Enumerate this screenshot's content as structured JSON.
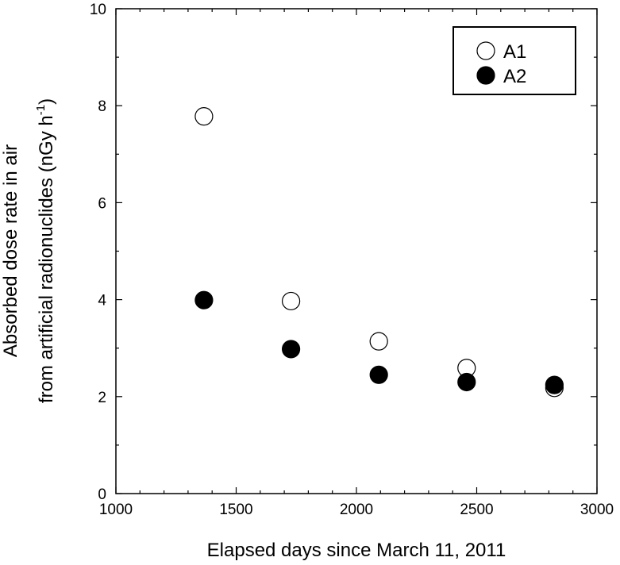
{
  "chart_data": {
    "type": "scatter",
    "xlabel": "Elapsed days since March 11, 2011",
    "ylabel_line1": "Absorbed dose rate in air",
    "ylabel_line2_main": "from artificial radionuclides (nGy h",
    "ylabel_line2_sup": "-1",
    "ylabel_line2_end": ")",
    "xlim": [
      1000,
      3000
    ],
    "ylim": [
      0,
      10
    ],
    "x_major_ticks": [
      1000,
      1500,
      2000,
      2500,
      3000
    ],
    "x_minor_step": 100,
    "y_major_ticks": [
      0,
      2,
      4,
      6,
      8,
      10
    ],
    "y_minor_step": 1,
    "grid": false,
    "legend_position": "top-right",
    "series": [
      {
        "name": "A1",
        "marker": "open-circle",
        "color": "#000000",
        "x": [
          1366,
          1728,
          2093,
          2458,
          2823
        ],
        "y": [
          7.78,
          3.97,
          3.14,
          2.59,
          2.18
        ]
      },
      {
        "name": "A2",
        "marker": "filled-circle",
        "color": "#000000",
        "x": [
          1366,
          1728,
          2093,
          2458,
          2823
        ],
        "y": [
          3.99,
          2.98,
          2.45,
          2.3,
          2.24
        ]
      }
    ]
  }
}
